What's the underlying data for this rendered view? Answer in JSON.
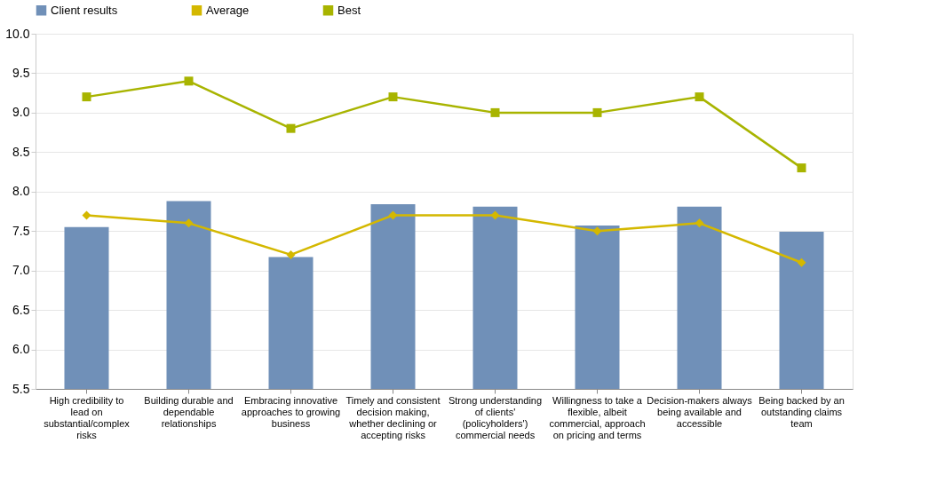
{
  "chart_data": {
    "type": "bar",
    "categories": [
      "High credibility to lead on substantial/complex risks",
      "Building durable and dependable relationships",
      "Embracing innovative approaches to growing business",
      "Timely and consistent decision making, whether declining or accepting risks",
      "Strong understanding of clients' (policyholders') commercial needs",
      "Willingness to take a flexible, albeit commercial, approach on pricing and terms",
      "Decision-makers always being available and accessible",
      "Being backed by an outstanding claims team"
    ],
    "series": [
      {
        "name": "Client results",
        "color": "#7090b8",
        "values": [
          7.55,
          7.88,
          7.17,
          7.84,
          7.81,
          7.57,
          7.81,
          7.49
        ]
      },
      {
        "name": "Average",
        "type": "line",
        "color": "#d4b800",
        "marker": "diamond",
        "values": [
          7.7,
          7.6,
          7.2,
          7.7,
          7.7,
          7.5,
          7.6,
          7.1
        ]
      },
      {
        "name": "Best",
        "type": "line",
        "color": "#a8b400",
        "marker": "square",
        "values": [
          9.2,
          9.4,
          8.8,
          9.2,
          9.0,
          9.0,
          9.2,
          8.3
        ]
      }
    ],
    "ylim": [
      5.5,
      10.0
    ],
    "yticks": [
      {
        "value": 5.5,
        "label": "5.5"
      },
      {
        "value": 6.0,
        "label": "6.0"
      },
      {
        "value": 6.5,
        "label": "6.5"
      },
      {
        "value": 7.0,
        "label": "7.0"
      },
      {
        "value": 7.5,
        "label": "7.5"
      },
      {
        "value": 8.0,
        "label": "8.0"
      },
      {
        "value": 8.5,
        "label": "8.5"
      },
      {
        "value": 9.0,
        "label": "9.0"
      },
      {
        "value": 9.5,
        "label": "9.5"
      },
      {
        "value": 10.0,
        "label": "10.0"
      }
    ],
    "grid": "y",
    "legend": "top"
  }
}
